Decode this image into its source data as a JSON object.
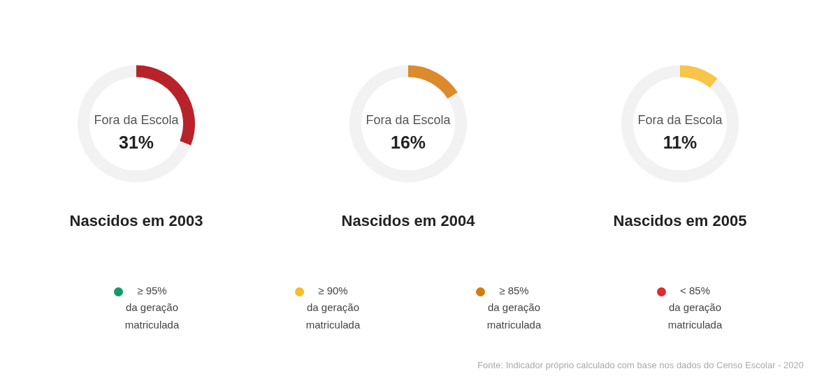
{
  "chart_data": [
    {
      "type": "donut",
      "title": "Nascidos em 2003",
      "annotations": [
        "Fora da Escola",
        "31%"
      ],
      "categories": [
        null,
        null
      ],
      "values": [
        31,
        69
      ],
      "colors": [
        "#b8232b",
        "#f2f2f2"
      ]
    },
    {
      "type": "donut",
      "title": "Nascidos em 2004",
      "annotations": [
        "Fora da Escola",
        "16%"
      ],
      "categories": [
        null,
        null
      ],
      "values": [
        16,
        84
      ],
      "colors": [
        "#dc8a2c",
        "#f2f2f2"
      ]
    },
    {
      "type": "donut",
      "title": "Nascidos em 2005",
      "annotations": [
        "Fora da Escola",
        "11%"
      ],
      "categories": [
        null,
        null
      ],
      "values": [
        11,
        89
      ],
      "colors": [
        "#f7c548",
        "#f2f2f2"
      ]
    },
    {
      "type": "other",
      "categories": [
        "≥ 95%\nda geração\nmatriculada",
        "≥ 90%\nda geração\nmatriculada",
        "≥ 85%\nda geração\nmatriculada",
        "< 85%\nda geração\nmatriculada"
      ],
      "colors": [
        "#129a6a",
        "#f5bd26",
        "#d27c10",
        "#df2b2f"
      ],
      "annotations": [
        "Fonte: Indicador próprio calculado com base nos dados do Censo Escolar - 2020"
      ]
    }
  ]
}
